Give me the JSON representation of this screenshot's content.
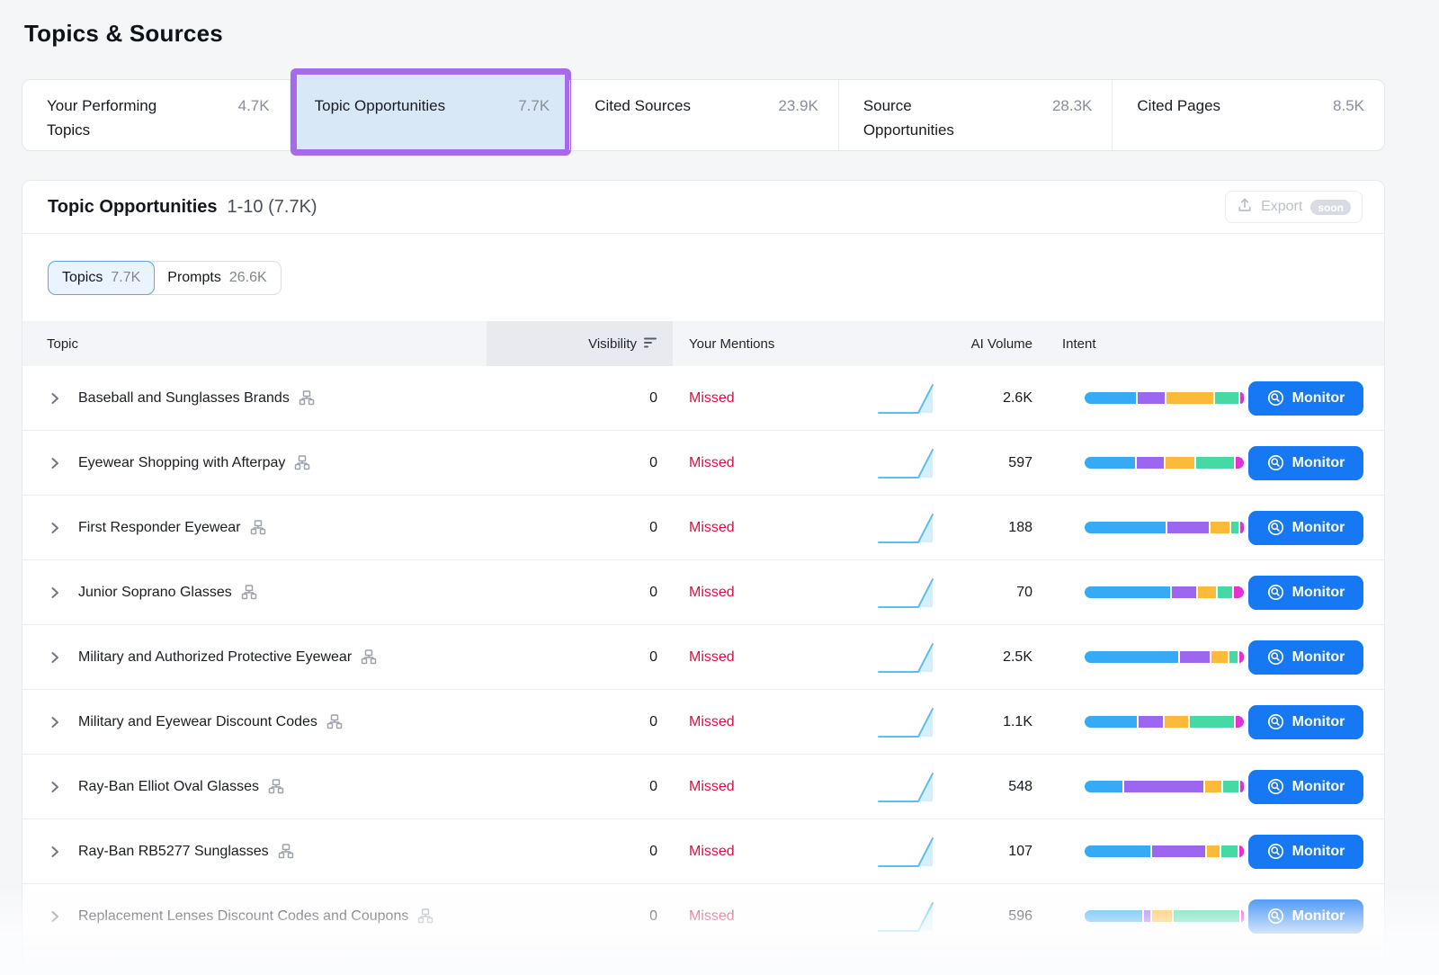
{
  "page": {
    "title": "Topics & Sources"
  },
  "tabs": [
    {
      "label": "Your Performing Topics",
      "count": "4.7K",
      "active": false
    },
    {
      "label": "Topic Opportunities",
      "count": "7.7K",
      "active": true
    },
    {
      "label": "Cited Sources",
      "count": "23.9K",
      "active": false
    },
    {
      "label": "Source Opportunities",
      "count": "28.3K",
      "active": false
    },
    {
      "label": "Cited Pages",
      "count": "8.5K",
      "active": false
    }
  ],
  "panel": {
    "title": "Topic Opportunities",
    "range": "1-10 (7.7K)",
    "export_label": "Export",
    "export_badge": "soon",
    "toggle": [
      {
        "label": "Topics",
        "count": "7.7K",
        "active": true
      },
      {
        "label": "Prompts",
        "count": "26.6K",
        "active": false
      }
    ]
  },
  "table": {
    "columns": {
      "topic": "Topic",
      "visibility": "Visibility",
      "mentions": "Your Mentions",
      "ai_volume": "AI Volume",
      "intent": "Intent"
    },
    "monitor_label": "Monitor",
    "intent_colors": {
      "blue": "#36AAF4",
      "purple": "#9D66F0",
      "orange": "#FDBA3A",
      "green": "#46D9A4",
      "magenta": "#E233D0"
    },
    "rows": [
      {
        "topic": "Baseball and Sunglasses Brands",
        "visibility": "0",
        "mentions": "Missed",
        "ai_volume": "2.6K",
        "intent": [
          [
            "blue",
            32
          ],
          [
            "purple",
            17
          ],
          [
            "orange",
            29
          ],
          [
            "green",
            15
          ],
          [
            "magenta",
            2
          ]
        ]
      },
      {
        "topic": "Eyewear Shopping with Afterpay",
        "visibility": "0",
        "mentions": "Missed",
        "ai_volume": "597",
        "intent": [
          [
            "blue",
            32
          ],
          [
            "purple",
            17
          ],
          [
            "orange",
            18
          ],
          [
            "green",
            24
          ],
          [
            "magenta",
            5
          ]
        ]
      },
      {
        "topic": "First Responder Eyewear",
        "visibility": "0",
        "mentions": "Missed",
        "ai_volume": "188",
        "intent": [
          [
            "blue",
            51
          ],
          [
            "purple",
            26
          ],
          [
            "orange",
            12
          ],
          [
            "green",
            5
          ],
          [
            "magenta",
            2
          ]
        ]
      },
      {
        "topic": "Junior Soprano Glasses",
        "visibility": "0",
        "mentions": "Missed",
        "ai_volume": "70",
        "intent": [
          [
            "blue",
            53
          ],
          [
            "purple",
            15
          ],
          [
            "orange",
            11
          ],
          [
            "green",
            9
          ],
          [
            "magenta",
            6
          ]
        ]
      },
      {
        "topic": "Military and Authorized Protective Eyewear",
        "visibility": "0",
        "mentions": "Missed",
        "ai_volume": "2.5K",
        "intent": [
          [
            "blue",
            58
          ],
          [
            "purple",
            18
          ],
          [
            "orange",
            10
          ],
          [
            "green",
            5
          ],
          [
            "magenta",
            3
          ]
        ]
      },
      {
        "topic": "Military and Eyewear Discount Codes",
        "visibility": "0",
        "mentions": "Missed",
        "ai_volume": "1.1K",
        "intent": [
          [
            "blue",
            33
          ],
          [
            "purple",
            15
          ],
          [
            "orange",
            15
          ],
          [
            "green",
            28
          ],
          [
            "magenta",
            5
          ]
        ]
      },
      {
        "topic": "Ray-Ban Elliot Oval Glasses",
        "visibility": "0",
        "mentions": "Missed",
        "ai_volume": "548",
        "intent": [
          [
            "blue",
            24
          ],
          [
            "purple",
            50
          ],
          [
            "orange",
            10
          ],
          [
            "green",
            10
          ],
          [
            "magenta",
            2
          ]
        ]
      },
      {
        "topic": "Ray-Ban RB5277 Sunglasses",
        "visibility": "0",
        "mentions": "Missed",
        "ai_volume": "107",
        "intent": [
          [
            "blue",
            41
          ],
          [
            "purple",
            33
          ],
          [
            "orange",
            8
          ],
          [
            "green",
            10
          ],
          [
            "magenta",
            3
          ]
        ]
      },
      {
        "topic": "Replacement Lenses Discount Codes and Coupons",
        "visibility": "0",
        "mentions": "Missed",
        "ai_volume": "596",
        "intent": [
          [
            "blue",
            37
          ],
          [
            "purple",
            4
          ],
          [
            "orange",
            13
          ],
          [
            "green",
            42
          ],
          [
            "magenta",
            2
          ]
        ]
      }
    ]
  },
  "colors": {
    "monitor_blue": "#1678F2",
    "missed_red": "#D31245",
    "tab_highlight": "#A66BEB",
    "active_tab_bg": "#D9E8F7",
    "spark_line": "#58C0F4",
    "spark_fill": "#D7EFFC"
  }
}
